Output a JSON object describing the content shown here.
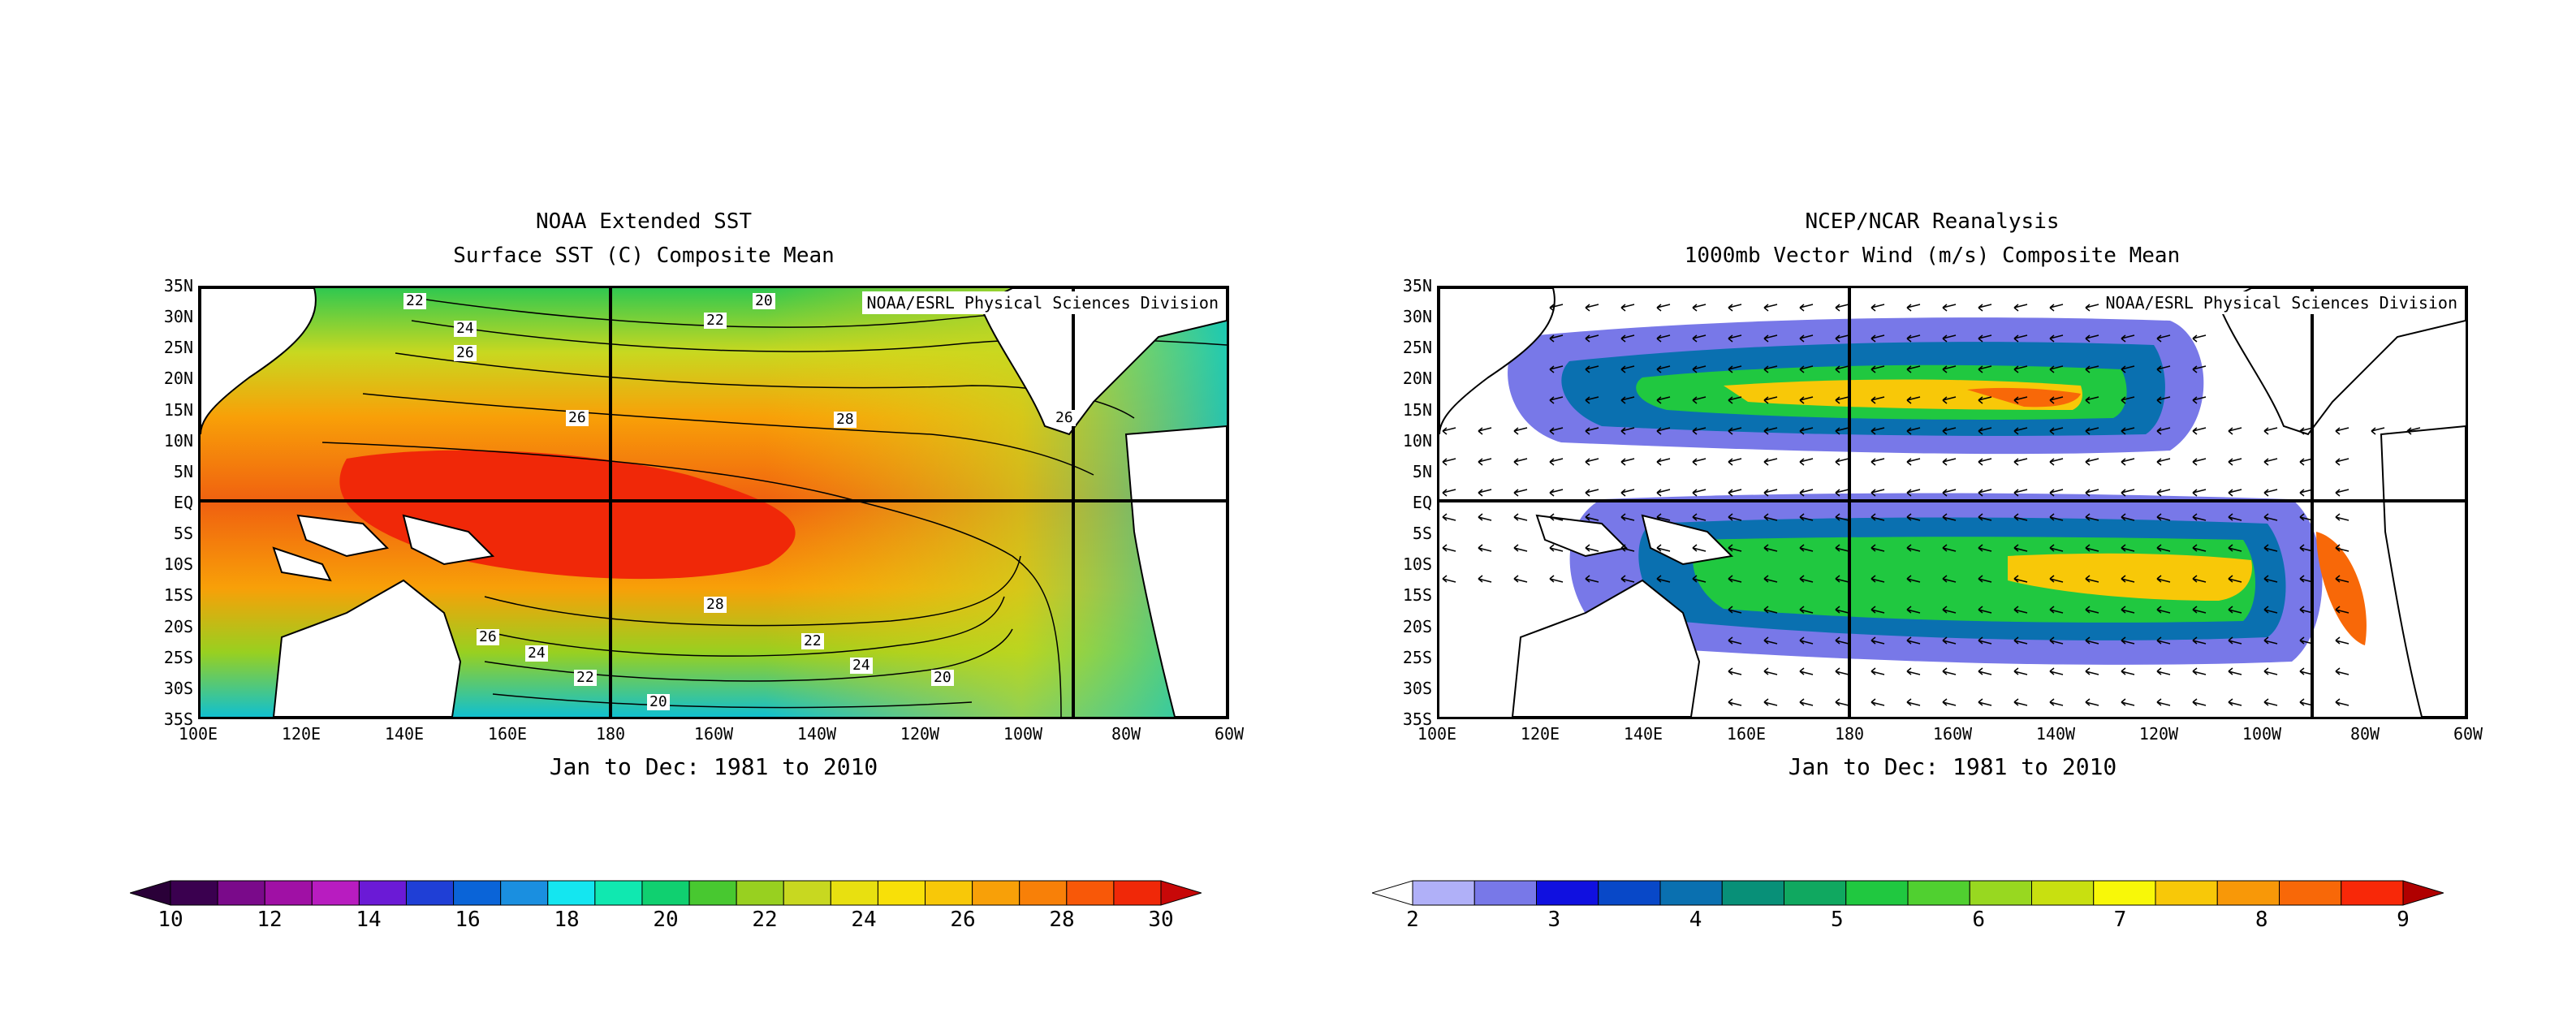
{
  "left": {
    "title1": "NOAA Extended SST",
    "title2": "Surface SST (C) Composite Mean",
    "credit": "NOAA/ESRL Physical Sciences Division",
    "period": "Jan to Dec: 1981 to 2010",
    "ylabels": [
      "35N",
      "30N",
      "25N",
      "20N",
      "15N",
      "10N",
      "5N",
      "EQ",
      "5S",
      "10S",
      "15S",
      "20S",
      "25S",
      "30S",
      "35S"
    ],
    "xlabels": [
      "100E",
      "120E",
      "140E",
      "160E",
      "180",
      "160W",
      "140W",
      "120W",
      "100W",
      "80W",
      "60W"
    ],
    "contour_labels": [
      {
        "text": "22"
      },
      {
        "text": "24"
      },
      {
        "text": "26"
      },
      {
        "text": "22"
      },
      {
        "text": "20"
      },
      {
        "text": "26"
      },
      {
        "text": "28"
      },
      {
        "text": "26"
      },
      {
        "text": "28"
      },
      {
        "text": "26"
      },
      {
        "text": "24"
      },
      {
        "text": "22"
      },
      {
        "text": "22"
      },
      {
        "text": "20"
      },
      {
        "text": "24"
      },
      {
        "text": "20"
      }
    ],
    "colorbar": {
      "labels": [
        "10",
        "12",
        "14",
        "16",
        "18",
        "20",
        "22",
        "24",
        "26",
        "28",
        "30"
      ],
      "colors": [
        "#3a004f",
        "#7a0a8a",
        "#a010a5",
        "#b81cc0",
        "#6b1ad6",
        "#1f3fd6",
        "#0a64d8",
        "#1a8fe0",
        "#14e6f0",
        "#10e8b0",
        "#10d070",
        "#48c830",
        "#98d020",
        "#c8d820",
        "#e8e010",
        "#f8e008",
        "#f8c808",
        "#f8a008",
        "#f88008",
        "#f85808",
        "#f02808"
      ],
      "color_under": "#2a0038",
      "color_over": "#c80808"
    }
  },
  "right": {
    "title1": "NCEP/NCAR Reanalysis",
    "title2": "1000mb Vector Wind (m/s) Composite Mean",
    "credit": "NOAA/ESRL Physical Sciences Division",
    "period": "Jan to Dec: 1981 to 2010",
    "ylabels": [
      "35N",
      "30N",
      "25N",
      "20N",
      "15N",
      "10N",
      "5N",
      "EQ",
      "5S",
      "10S",
      "15S",
      "20S",
      "25S",
      "30S",
      "35S"
    ],
    "xlabels": [
      "100E",
      "120E",
      "140E",
      "160E",
      "180",
      "160W",
      "140W",
      "120W",
      "100W",
      "80W",
      "60W"
    ],
    "colorbar": {
      "labels": [
        "2",
        "3",
        "4",
        "5",
        "6",
        "7",
        "8",
        "9"
      ],
      "colors": [
        "#b0b0f8",
        "#7878e8",
        "#1010e0",
        "#0848c8",
        "#0a70b0",
        "#089078",
        "#10a860",
        "#20c840",
        "#50d030",
        "#98d820",
        "#c8e010",
        "#f8f808",
        "#f8c808",
        "#f89808",
        "#f86808",
        "#f82808"
      ],
      "color_under": "#ffffff",
      "color_over": "#b00000"
    }
  }
}
